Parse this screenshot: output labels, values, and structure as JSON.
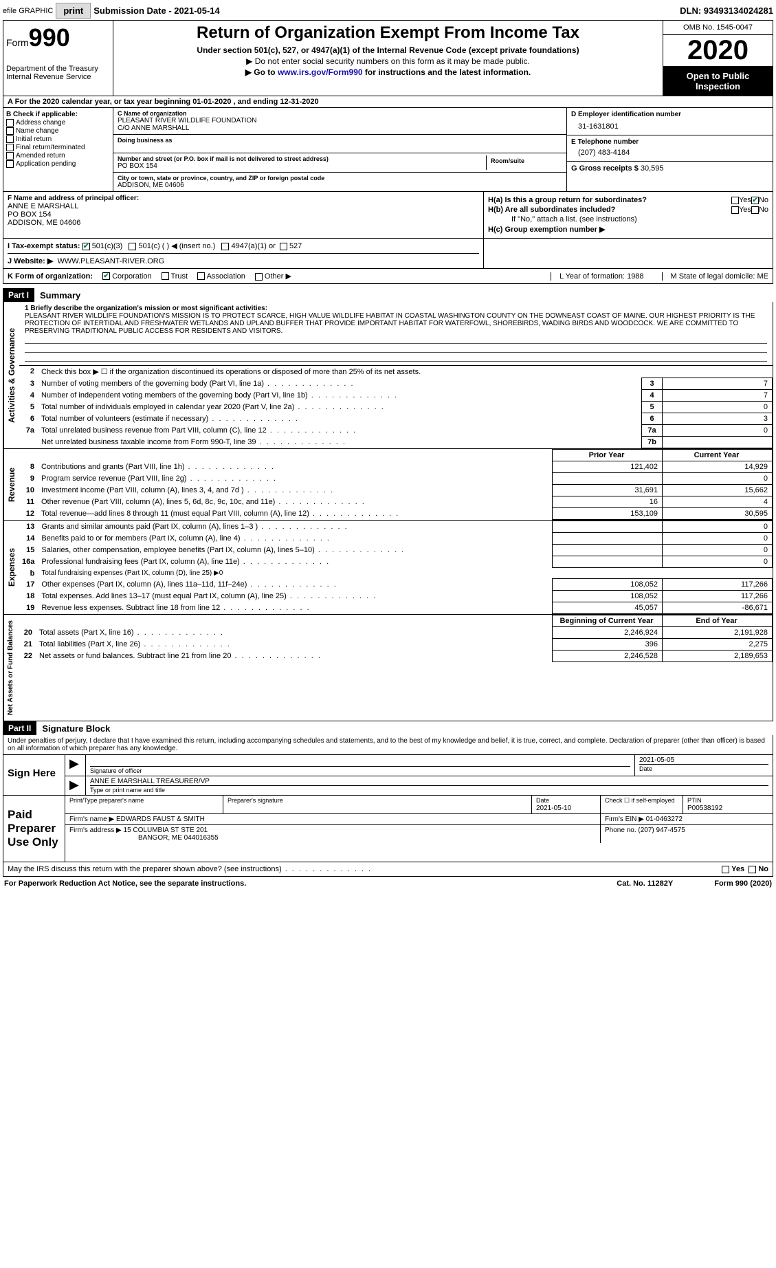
{
  "top": {
    "efile": "efile GRAPHIC",
    "print": "print",
    "sub_date_label": "Submission Date - 2021-05-14",
    "dln": "DLN: 93493134024281"
  },
  "header": {
    "form_word": "Form",
    "form_num": "990",
    "dept": "Department of the Treasury\nInternal Revenue Service",
    "title": "Return of Organization Exempt From Income Tax",
    "sub": "Under section 501(c), 527, or 4947(a)(1) of the Internal Revenue Code (except private foundations)",
    "note1": "▶ Do not enter social security numbers on this form as it may be made public.",
    "note2_pre": "▶ Go to ",
    "note2_link": "www.irs.gov/Form990",
    "note2_post": " for instructions and the latest information.",
    "omb": "OMB No. 1545-0047",
    "year": "2020",
    "open": "Open to Public Inspection"
  },
  "rowA": {
    "text": "A For the 2020 calendar year, or tax year beginning 01-01-2020    , and ending 12-31-2020"
  },
  "B": {
    "title": "B Check if applicable:",
    "items": [
      "Address change",
      "Name change",
      "Initial return",
      "Final return/terminated",
      "Amended return",
      "Application pending"
    ]
  },
  "C": {
    "name_label": "C Name of organization",
    "name": "PLEASANT RIVER WILDLIFE FOUNDATION",
    "co": "C/O ANNE MARSHALL",
    "dba_label": "Doing business as",
    "addr_label": "Number and street (or P.O. box if mail is not delivered to street address)",
    "room_label": "Room/suite",
    "addr": "PO BOX 154",
    "city_label": "City or town, state or province, country, and ZIP or foreign postal code",
    "city": "ADDISON, ME  04606"
  },
  "D": {
    "label": "D Employer identification number",
    "value": "31-1631801",
    "E_label": "E Telephone number",
    "E_value": "(207) 483-4184",
    "G_label": "G Gross receipts $",
    "G_value": "30,595"
  },
  "F": {
    "label": "F  Name and address of principal officer:",
    "name": "ANNE E MARSHALL",
    "addr1": "PO BOX 154",
    "addr2": "ADDISON, ME  04606"
  },
  "H": {
    "a": "H(a)  Is this a group return for subordinates?",
    "b": "H(b)  Are all subordinates included?",
    "note": "If \"No,\" attach a list. (see instructions)",
    "c": "H(c)  Group exemption number ▶",
    "yes": "Yes",
    "no": "No"
  },
  "I": {
    "label": "I   Tax-exempt status:",
    "o1": "501(c)(3)",
    "o2": "501(c) (   ) ◀ (insert no.)",
    "o3": "4947(a)(1) or",
    "o4": "527"
  },
  "J": {
    "label": "J   Website: ▶",
    "value": "WWW.PLEASANT-RIVER.ORG"
  },
  "K": {
    "label": "K Form of organization:",
    "o1": "Corporation",
    "o2": "Trust",
    "o3": "Association",
    "o4": "Other ▶",
    "L": "L Year of formation: 1988",
    "M": "M State of legal domicile: ME"
  },
  "partI": {
    "tag": "Part I",
    "title": "Summary"
  },
  "mission": {
    "label": "1   Briefly describe the organization's mission or most significant activities:",
    "text": "PLEASANT RIVER WILDLIFE FOUNDATION'S MISSION IS TO PROTECT SCARCE, HIGH VALUE WILDLIFE HABITAT IN COASTAL WASHINGTON COUNTY ON THE DOWNEAST COAST OF MAINE. OUR HIGHEST PRIORITY IS THE PROTECTION OF INTERTIDAL AND FRESHWATER WETLANDS AND UPLAND BUFFER THAT PROVIDE IMPORTANT HABITAT FOR WATERFOWL, SHOREBIRDS, WADING BIRDS AND WOODCOCK. WE ARE COMMITTED TO PRESERVING TRADITIONAL PUBLIC ACCESS FOR RESIDENTS AND VISITORS."
  },
  "gov": {
    "l2": "Check this box ▶ ☐ if the organization discontinued its operations or disposed of more than 25% of its net assets.",
    "rows": [
      {
        "n": "3",
        "d": "Number of voting members of the governing body (Part VI, line 1a)",
        "bn": "3",
        "v": "7"
      },
      {
        "n": "4",
        "d": "Number of independent voting members of the governing body (Part VI, line 1b)",
        "bn": "4",
        "v": "7"
      },
      {
        "n": "5",
        "d": "Total number of individuals employed in calendar year 2020 (Part V, line 2a)",
        "bn": "5",
        "v": "0"
      },
      {
        "n": "6",
        "d": "Total number of volunteers (estimate if necessary)",
        "bn": "6",
        "v": "3"
      },
      {
        "n": "7a",
        "d": "Total unrelated business revenue from Part VIII, column (C), line 12",
        "bn": "7a",
        "v": "0"
      },
      {
        "n": "",
        "d": "Net unrelated business taxable income from Form 990-T, line 39",
        "bn": "7b",
        "v": ""
      }
    ]
  },
  "rev": {
    "hdr_prior": "Prior Year",
    "hdr_curr": "Current Year",
    "rows": [
      {
        "n": "8",
        "d": "Contributions and grants (Part VIII, line 1h)",
        "p": "121,402",
        "c": "14,929"
      },
      {
        "n": "9",
        "d": "Program service revenue (Part VIII, line 2g)",
        "p": "",
        "c": "0"
      },
      {
        "n": "10",
        "d": "Investment income (Part VIII, column (A), lines 3, 4, and 7d )",
        "p": "31,691",
        "c": "15,662"
      },
      {
        "n": "11",
        "d": "Other revenue (Part VIII, column (A), lines 5, 6d, 8c, 9c, 10c, and 11e)",
        "p": "16",
        "c": "4"
      },
      {
        "n": "12",
        "d": "Total revenue—add lines 8 through 11 (must equal Part VIII, column (A), line 12)",
        "p": "153,109",
        "c": "30,595"
      }
    ]
  },
  "exp": {
    "rows": [
      {
        "n": "13",
        "d": "Grants and similar amounts paid (Part IX, column (A), lines 1–3 )",
        "p": "",
        "c": "0"
      },
      {
        "n": "14",
        "d": "Benefits paid to or for members (Part IX, column (A), line 4)",
        "p": "",
        "c": "0"
      },
      {
        "n": "15",
        "d": "Salaries, other compensation, employee benefits (Part IX, column (A), lines 5–10)",
        "p": "",
        "c": "0"
      },
      {
        "n": "16a",
        "d": "Professional fundraising fees (Part IX, column (A), line 11e)",
        "p": "",
        "c": "0"
      },
      {
        "n": "b",
        "d": "Total fundraising expenses (Part IX, column (D), line 25) ▶0",
        "p": "—hide—",
        "c": "—hide—"
      },
      {
        "n": "17",
        "d": "Other expenses (Part IX, column (A), lines 11a–11d, 11f–24e)",
        "p": "108,052",
        "c": "117,266"
      },
      {
        "n": "18",
        "d": "Total expenses. Add lines 13–17 (must equal Part IX, column (A), line 25)",
        "p": "108,052",
        "c": "117,266"
      },
      {
        "n": "19",
        "d": "Revenue less expenses. Subtract line 18 from line 12",
        "p": "45,057",
        "c": "-86,671"
      }
    ]
  },
  "net": {
    "hdr_b": "Beginning of Current Year",
    "hdr_e": "End of Year",
    "rows": [
      {
        "n": "20",
        "d": "Total assets (Part X, line 16)",
        "p": "2,246,924",
        "c": "2,191,928"
      },
      {
        "n": "21",
        "d": "Total liabilities (Part X, line 26)",
        "p": "396",
        "c": "2,275"
      },
      {
        "n": "22",
        "d": "Net assets or fund balances. Subtract line 21 from line 20",
        "p": "2,246,528",
        "c": "2,189,653"
      }
    ]
  },
  "partII": {
    "tag": "Part II",
    "title": "Signature Block"
  },
  "penalties": "Under penalties of perjury, I declare that I have examined this return, including accompanying schedules and statements, and to the best of my knowledge and belief, it is true, correct, and complete. Declaration of preparer (other than officer) is based on all information of which preparer has any knowledge.",
  "sign": {
    "here": "Sign Here",
    "sig_label": "Signature of officer",
    "date": "2021-05-05",
    "date_label": "Date",
    "name": "ANNE E MARSHALL  TREASURER/VP",
    "name_label": "Type or print name and title"
  },
  "paid": {
    "title": "Paid Preparer Use Only",
    "pt_name_label": "Print/Type preparer's name",
    "sig_label": "Preparer's signature",
    "date_label": "Date",
    "date": "2021-05-10",
    "check_label": "Check ☐ if self-employed",
    "ptin_label": "PTIN",
    "ptin": "P00538192",
    "firm_name_label": "Firm's name    ▶",
    "firm_name": "EDWARDS FAUST & SMITH",
    "firm_ein_label": "Firm's EIN ▶",
    "firm_ein": "01-0463272",
    "firm_addr_label": "Firm's address ▶",
    "firm_addr1": "15 COLUMBIA ST STE 201",
    "firm_addr2": "BANGOR, ME  044016355",
    "phone_label": "Phone no.",
    "phone": "(207) 947-4575"
  },
  "discuss": "May the IRS discuss this return with the preparer shown above? (see instructions)",
  "footer": {
    "left": "For Paperwork Reduction Act Notice, see the separate instructions.",
    "mid": "Cat. No. 11282Y",
    "right": "Form 990 (2020)"
  },
  "vert": {
    "gov": "Activities & Governance",
    "rev": "Revenue",
    "exp": "Expenses",
    "net": "Net Assets or Fund Balances"
  }
}
